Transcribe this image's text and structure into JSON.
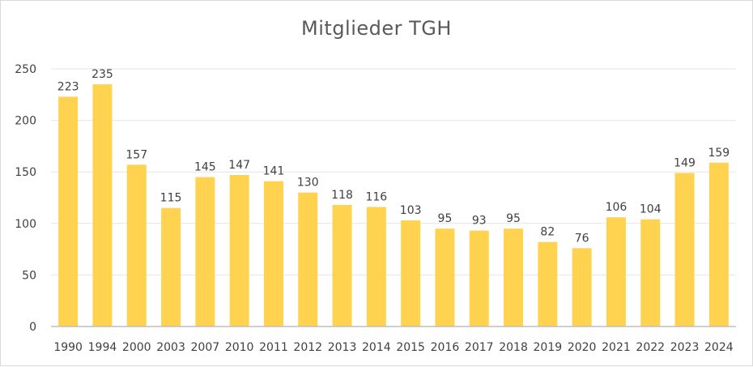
{
  "chart_data": {
    "type": "bar",
    "title": "Mitglieder TGH",
    "xlabel": "",
    "ylabel": "",
    "categories": [
      "1990",
      "1994",
      "2000",
      "2003",
      "2007",
      "2010",
      "2011",
      "2012",
      "2013",
      "2014",
      "2015",
      "2016",
      "2017",
      "2018",
      "2019",
      "2020",
      "2021",
      "2022",
      "2023",
      "2024"
    ],
    "values": [
      223,
      235,
      157,
      115,
      145,
      147,
      141,
      130,
      118,
      116,
      103,
      95,
      93,
      95,
      82,
      76,
      106,
      104,
      149,
      159
    ],
    "ylim": [
      0,
      250
    ],
    "yticks": [
      0,
      50,
      100,
      150,
      200,
      250
    ],
    "grid": true,
    "legend": "none",
    "bar_color": "#ffd24f",
    "data_labels": true
  }
}
